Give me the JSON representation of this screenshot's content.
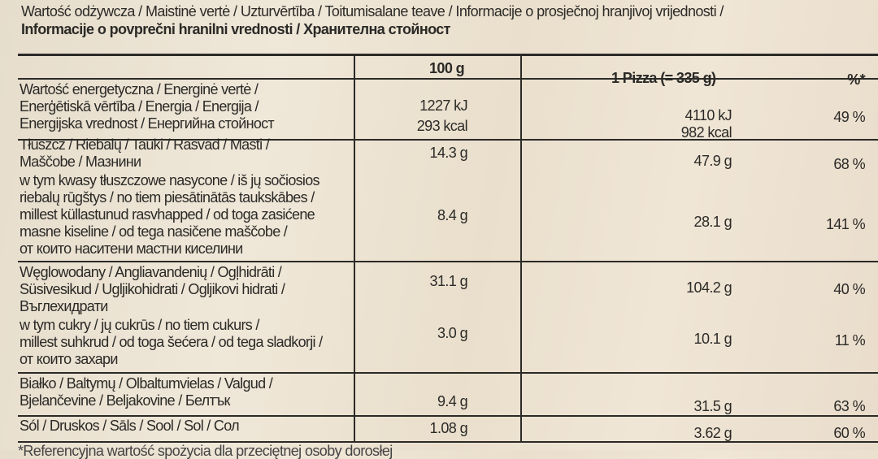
{
  "title_line1": "Wartość odżywcza / Maistinė vertė / Uzturvērtība / Toitumisalane teave / Informacije o prosječnoj hranjivoj vrijednosti /",
  "title_line2": "Informacije o povprečni hranilni vrednosti / Хранителна стойност",
  "header": {
    "per100": "100 g",
    "perPizza": "1 Pizza (= 335 g)",
    "percent": "%*"
  },
  "rows": [
    {
      "label": "Wartość energetyczna / Energinė vertė /\nEnerģētiskā vērtība / Energia / Energija /\nEnergijska vrednost / Енергийна стойност",
      "per100": "1227 kJ",
      "per100b": "293 kcal",
      "perPizza": "4110 kJ",
      "perPizzab": "982 kcal",
      "percent": "49 %"
    },
    {
      "label": "Tłuszcz / Riebalų / Tauki / Rasvad / Masti /\nMaščobe / Мазнини",
      "per100": "14.3 g",
      "perPizza": "47.9 g",
      "percent": "68 %"
    },
    {
      "label": "w tym kwasy tłuszczowe nasycone / iš jų sočiosios\nriebalų rūgštys / no tiem piesātinātās taukskābes /\nmillest küllastunud rasvhapped / od toga zasićene\nmasne kiseline / od tega nasičene maščobe /\nот които наситени мастни киселини",
      "per100": "8.4 g",
      "perPizza": "28.1 g",
      "percent": "141 %"
    },
    {
      "label": "Węglowodany / Angliavandenių / Ogļhidrāti /\nSüsivesikud / Ugljikohidrati / Ogljikovi hidrati /\nВъглехидрати",
      "per100": "31.1 g",
      "perPizza": "104.2 g",
      "percent": "40 %"
    },
    {
      "label": "w tym cukry / jų cukrūs / no tiem cukurs /\nmillest suhkrud / od toga šećera / od tega sladkorji /\nот които захари",
      "per100": "3.0 g",
      "perPizza": "10.1 g",
      "percent": "11 %"
    },
    {
      "label": "Białko / Baltymų / Olbaltumvielas / Valgud /\nBjelančevine / Beljakovine / Белтък",
      "per100": "9.4 g",
      "perPizza": "31.5 g",
      "percent": "63 %"
    },
    {
      "label": "Sól / Druskos / Sāls / Sool / Sol / Сол",
      "per100": "1.08 g",
      "perPizza": "3.62 g",
      "percent": "60 %"
    }
  ],
  "footnote": "*Referencyjna wartość spożycia dla przeciętnej osoby dorosłej"
}
